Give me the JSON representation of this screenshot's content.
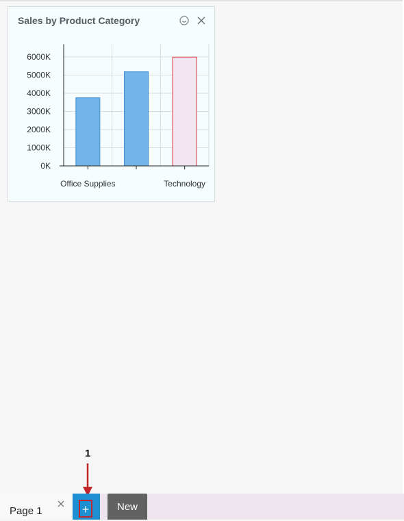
{
  "widget": {
    "title": "Sales by Product Category",
    "menu_icon": "smiley-icon",
    "close_icon": "close-icon"
  },
  "chart_data": {
    "type": "bar",
    "title": "Sales by Product Category",
    "categories": [
      "Office Supplies",
      "",
      "Technology"
    ],
    "values": [
      3750,
      5180,
      5990
    ],
    "ytick_labels": [
      "0K",
      "1000K",
      "2000K",
      "3000K",
      "4000K",
      "5000K",
      "6000K"
    ],
    "ylim": [
      0,
      6700
    ],
    "bar_colors": [
      "#73b5e8",
      "#73b5e8",
      "#f1e6ef"
    ],
    "bar_borders": [
      "#3f8fd4",
      "#3f8fd4",
      "#d9363e"
    ],
    "grid": true
  },
  "tabs": {
    "page_label": "Page 1",
    "close_icon": "close-icon",
    "add_label": "+",
    "new_label": "New"
  },
  "annotation": {
    "number": "1",
    "arrow_color": "#c0262a"
  }
}
